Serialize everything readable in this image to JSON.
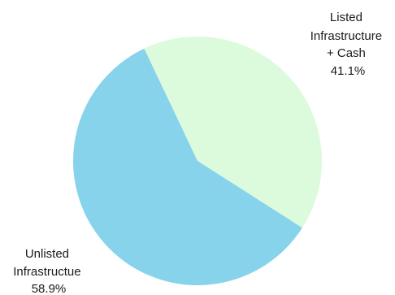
{
  "chart_data": {
    "type": "pie",
    "title": "",
    "slices": [
      {
        "label_lines": [
          "Listed",
          "Infrastructure",
          "+ Cash"
        ],
        "value": 41.1,
        "value_label": "41.1%",
        "color": "#dcfadc"
      },
      {
        "label_lines": [
          "Unlisted",
          "Infrastructue"
        ],
        "value": 58.9,
        "value_label": "58.9%",
        "color": "#87d3eb"
      }
    ],
    "legend": "none",
    "label_placement": "outside"
  }
}
